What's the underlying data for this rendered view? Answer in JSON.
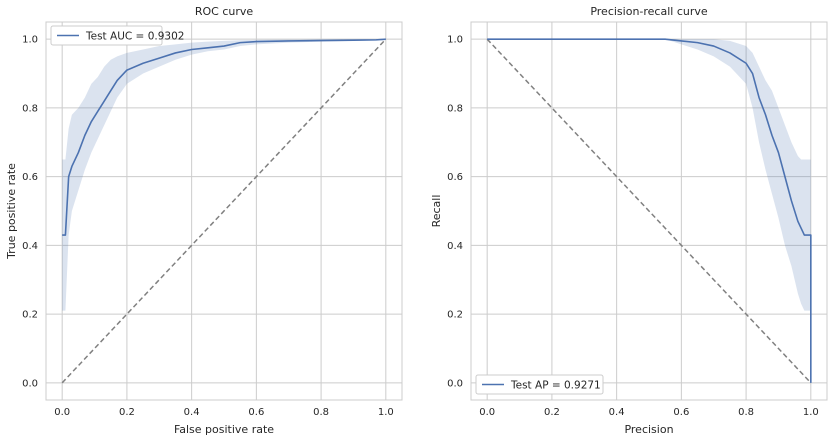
{
  "chart_data": [
    {
      "type": "line",
      "title": "ROC curve",
      "xlabel": "False positive rate",
      "ylabel": "True positive rate",
      "xlim": [
        -0.05,
        1.05
      ],
      "ylim": [
        -0.05,
        1.05
      ],
      "xticks": [
        0.0,
        0.2,
        0.4,
        0.6,
        0.8,
        1.0
      ],
      "yticks": [
        0.0,
        0.2,
        0.4,
        0.6,
        0.8,
        1.0
      ],
      "xtick_labels": [
        "0.0",
        "0.2",
        "0.4",
        "0.6",
        "0.8",
        "1.0"
      ],
      "ytick_labels": [
        "0.0",
        "0.2",
        "0.4",
        "0.6",
        "0.8",
        "1.0"
      ],
      "grid": true,
      "legend_position": "top-left",
      "colors": {
        "line": "#4c72b0",
        "band": "#4c72b0",
        "reference": "#808080"
      },
      "series": [
        {
          "name": "Test AUC = 0.9302",
          "x": [
            0.0,
            0.01,
            0.02,
            0.03,
            0.05,
            0.07,
            0.09,
            0.11,
            0.13,
            0.15,
            0.17,
            0.2,
            0.25,
            0.3,
            0.35,
            0.4,
            0.45,
            0.5,
            0.55,
            0.6,
            0.7,
            0.8,
            0.9,
            0.97,
            1.0
          ],
          "y": [
            0.43,
            0.43,
            0.6,
            0.63,
            0.67,
            0.72,
            0.76,
            0.79,
            0.82,
            0.85,
            0.88,
            0.91,
            0.93,
            0.945,
            0.96,
            0.97,
            0.975,
            0.98,
            0.99,
            0.993,
            0.995,
            0.996,
            0.997,
            0.998,
            1.0
          ],
          "lower": [
            0.21,
            0.21,
            0.43,
            0.5,
            0.56,
            0.62,
            0.67,
            0.71,
            0.75,
            0.79,
            0.83,
            0.87,
            0.9,
            0.92,
            0.94,
            0.955,
            0.965,
            0.97,
            0.98,
            0.985,
            0.99,
            0.993,
            0.995,
            0.997,
            1.0
          ],
          "upper": [
            0.65,
            0.65,
            0.74,
            0.78,
            0.8,
            0.83,
            0.87,
            0.89,
            0.92,
            0.94,
            0.95,
            0.96,
            0.97,
            0.98,
            0.985,
            0.99,
            0.993,
            0.995,
            0.997,
            0.998,
            0.999,
            1.0,
            1.0,
            1.0,
            1.0
          ]
        }
      ],
      "reference_line": {
        "x": [
          0,
          1
        ],
        "y": [
          0,
          1
        ],
        "style": "dashed"
      }
    },
    {
      "type": "line",
      "title": "Precision-recall curve",
      "xlabel": "Precision",
      "ylabel": "Recall",
      "xlim": [
        -0.05,
        1.05
      ],
      "ylim": [
        -0.05,
        1.05
      ],
      "xticks": [
        0.0,
        0.2,
        0.4,
        0.6,
        0.8,
        1.0
      ],
      "yticks": [
        0.0,
        0.2,
        0.4,
        0.6,
        0.8,
        1.0
      ],
      "xtick_labels": [
        "0.0",
        "0.2",
        "0.4",
        "0.6",
        "0.8",
        "1.0"
      ],
      "ytick_labels": [
        "0.0",
        "0.2",
        "0.4",
        "0.6",
        "0.8",
        "1.0"
      ],
      "grid": true,
      "legend_position": "bottom-left",
      "colors": {
        "line": "#4c72b0",
        "band": "#4c72b0",
        "reference": "#808080"
      },
      "series": [
        {
          "name": "Test AP = 0.9271",
          "x": [
            0.0,
            0.1,
            0.2,
            0.3,
            0.4,
            0.5,
            0.55,
            0.6,
            0.65,
            0.7,
            0.75,
            0.8,
            0.82,
            0.84,
            0.86,
            0.88,
            0.9,
            0.92,
            0.94,
            0.96,
            0.97,
            0.98,
            0.99,
            1.0,
            1.0
          ],
          "y": [
            1.0,
            1.0,
            1.0,
            1.0,
            1.0,
            1.0,
            1.0,
            0.995,
            0.99,
            0.98,
            0.96,
            0.93,
            0.9,
            0.83,
            0.78,
            0.72,
            0.67,
            0.6,
            0.53,
            0.47,
            0.45,
            0.43,
            0.43,
            0.43,
            0.0
          ],
          "lower": [
            1.0,
            1.0,
            1.0,
            1.0,
            1.0,
            1.0,
            1.0,
            0.985,
            0.97,
            0.95,
            0.92,
            0.87,
            0.8,
            0.7,
            0.62,
            0.55,
            0.48,
            0.4,
            0.34,
            0.26,
            0.23,
            0.21,
            0.21,
            0.21,
            0.0
          ],
          "upper": [
            1.0,
            1.0,
            1.0,
            1.0,
            1.0,
            1.0,
            1.0,
            1.0,
            1.0,
            1.0,
            0.995,
            0.98,
            0.96,
            0.92,
            0.88,
            0.85,
            0.8,
            0.75,
            0.7,
            0.66,
            0.65,
            0.65,
            0.65,
            0.65,
            0.0
          ]
        }
      ],
      "reference_line": {
        "x": [
          0,
          1
        ],
        "y": [
          1,
          0
        ],
        "style": "dashed"
      }
    }
  ]
}
